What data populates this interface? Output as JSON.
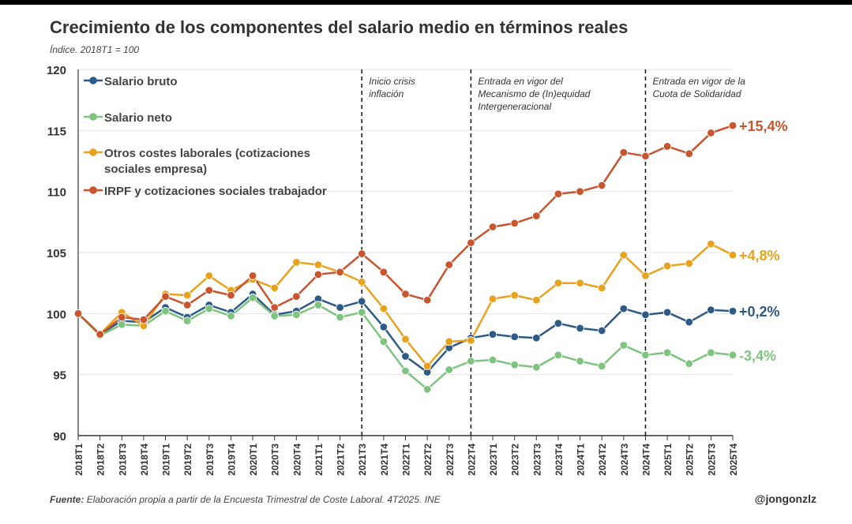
{
  "title": "Crecimiento de los componentes del salario medio en términos reales",
  "subtitle": "Índice. 2018T1 = 100",
  "source_label": "Fuente:",
  "source_text": "Elaboración propia a partir de la Encuesta Trimestral de Coste Laboral. 4T2025. INE",
  "handle": "@jongonzlz",
  "colors": {
    "salario_bruto": "#2e5a88",
    "salario_neto": "#7ec47e",
    "otros_costes": "#e8a21e",
    "irpf": "#c8552e"
  },
  "chart_data": {
    "type": "line",
    "title": "Crecimiento de los componentes del salario medio en términos reales",
    "subtitle": "Índice. 2018T1 = 100",
    "ylim": [
      90,
      120
    ],
    "yticks": [
      90,
      95,
      100,
      105,
      110,
      115,
      120
    ],
    "grid": true,
    "legend_position": "top-left",
    "categories": [
      "2018T1",
      "2018T2",
      "2018T3",
      "2018T4",
      "2019T1",
      "2019T2",
      "2019T3",
      "2019T4",
      "2020T1",
      "2020T3",
      "2020T4",
      "2021T1",
      "2021T2",
      "2021T3",
      "2021T4",
      "2022T1",
      "2022T2",
      "2022T3",
      "2022T4",
      "2023T1",
      "2023T2",
      "2023T3",
      "2023T4",
      "2024T1",
      "2024T2",
      "2024T3",
      "2024T4",
      "2025T1",
      "2025T2",
      "2025T3",
      "2025T4"
    ],
    "series": [
      {
        "name": "Salario bruto",
        "color_key": "salario_bruto",
        "end_label": "+0,2%",
        "values": [
          100.0,
          98.3,
          99.4,
          99.3,
          100.5,
          99.7,
          100.7,
          100.1,
          101.6,
          99.9,
          100.2,
          101.2,
          100.5,
          101.0,
          98.9,
          96.5,
          95.2,
          97.2,
          98.0,
          98.3,
          98.1,
          98.0,
          99.2,
          98.8,
          98.6,
          100.4,
          99.9,
          100.1,
          99.3,
          100.3,
          100.2
        ]
      },
      {
        "name": "Salario neto",
        "color_key": "salario_neto",
        "end_label": "-3,4%",
        "values": [
          100.0,
          98.2,
          99.1,
          99.0,
          100.2,
          99.4,
          100.4,
          99.8,
          101.3,
          99.8,
          99.9,
          100.7,
          99.7,
          100.1,
          97.7,
          95.3,
          93.8,
          95.4,
          96.1,
          96.2,
          95.8,
          95.6,
          96.6,
          96.1,
          95.7,
          97.4,
          96.6,
          96.8,
          95.9,
          96.8,
          96.6
        ]
      },
      {
        "name": "Otros costes laborales (cotizaciones sociales empresa)",
        "legend_lines": [
          "Otros costes laborales (cotizaciones",
          "sociales empresa)"
        ],
        "color_key": "otros_costes",
        "end_label": "+4,8%",
        "values": [
          100.0,
          98.3,
          100.1,
          99.0,
          101.6,
          101.5,
          103.1,
          101.9,
          102.8,
          102.1,
          104.2,
          104.0,
          103.4,
          102.6,
          100.4,
          97.9,
          95.7,
          97.7,
          97.8,
          101.2,
          101.5,
          101.1,
          102.5,
          102.5,
          102.1,
          104.8,
          103.1,
          103.9,
          104.1,
          105.7,
          104.8
        ]
      },
      {
        "name": "IRPF y cotizaciones sociales trabajador",
        "color_key": "irpf",
        "end_label": "+15,4%",
        "values": [
          100.0,
          98.3,
          99.7,
          99.5,
          101.4,
          100.7,
          101.9,
          101.5,
          103.1,
          100.5,
          101.4,
          103.2,
          103.4,
          104.9,
          103.4,
          101.6,
          101.1,
          104.0,
          105.8,
          107.1,
          107.4,
          108.0,
          109.8,
          110.0,
          110.5,
          113.2,
          112.9,
          113.7,
          113.1,
          114.8,
          115.4
        ]
      }
    ],
    "annotations": [
      {
        "at": "2021T3",
        "lines": [
          "Inicio crisis",
          "inflación"
        ]
      },
      {
        "at": "2022T4",
        "lines": [
          "Entrada en vigor del",
          "Mecanismo de (In)equidad",
          "Intergeneracional"
        ]
      },
      {
        "at": "2024T4",
        "lines": [
          "Entrada en vigor de la",
          "Cuota de Solidaridad"
        ]
      }
    ]
  }
}
